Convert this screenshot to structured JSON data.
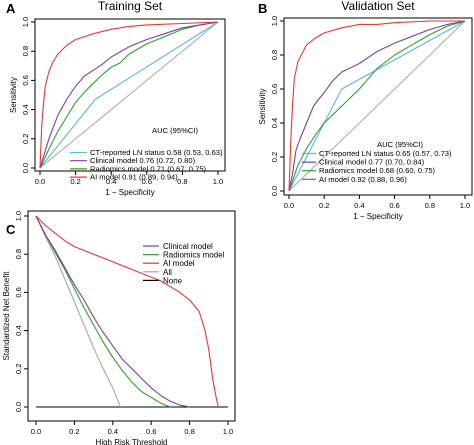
{
  "chart_data": [
    {
      "panel_label": "A",
      "type": "line",
      "title": "Training Set",
      "xlabel": "1 − Specificity",
      "ylabel": "Sensitivity",
      "xlim": [
        0,
        1.0
      ],
      "ylim": [
        0,
        1.0
      ],
      "xticks": [
        "0.0",
        "0.2",
        "0.4",
        "0.6",
        "0.8",
        "1.0"
      ],
      "yticks": [
        "0.0",
        "0.2",
        "0.4",
        "0.6",
        "0.8",
        "1.0"
      ],
      "grid": false,
      "legend_title": "AUC (95%CI)",
      "legend_position": "bottom-right",
      "diagonal_reference": true,
      "series": [
        {
          "name": "CT-reported LN status",
          "label": "CT-reported LN status 0.58 (0.53, 0.63)",
          "color": "#5ab4e5",
          "points": [
            [
              0,
              0
            ],
            [
              0.31,
              0.47
            ],
            [
              1,
              1
            ]
          ]
        },
        {
          "name": "Clinical model",
          "label": "Clinical model 0.76 (0.72, 0.80)",
          "color": "#7b3fa3",
          "points": [
            [
              0,
              0
            ],
            [
              0.02,
              0.08
            ],
            [
              0.05,
              0.2
            ],
            [
              0.1,
              0.36
            ],
            [
              0.15,
              0.47
            ],
            [
              0.2,
              0.56
            ],
            [
              0.25,
              0.63
            ],
            [
              0.3,
              0.67
            ],
            [
              0.35,
              0.71
            ],
            [
              0.4,
              0.76
            ],
            [
              0.5,
              0.83
            ],
            [
              0.6,
              0.88
            ],
            [
              0.7,
              0.92
            ],
            [
              0.8,
              0.96
            ],
            [
              0.9,
              0.98
            ],
            [
              1,
              1
            ]
          ]
        },
        {
          "name": "Radiomics model",
          "label": "Radiomics model 0.71 (0.67, 0.75)",
          "color": "#2ca02c",
          "points": [
            [
              0,
              0
            ],
            [
              0.02,
              0.05
            ],
            [
              0.05,
              0.13
            ],
            [
              0.1,
              0.25
            ],
            [
              0.15,
              0.35
            ],
            [
              0.2,
              0.45
            ],
            [
              0.25,
              0.52
            ],
            [
              0.3,
              0.58
            ],
            [
              0.35,
              0.64
            ],
            [
              0.4,
              0.69
            ],
            [
              0.45,
              0.72
            ],
            [
              0.5,
              0.78
            ],
            [
              0.6,
              0.85
            ],
            [
              0.7,
              0.9
            ],
            [
              0.8,
              0.95
            ],
            [
              0.9,
              0.98
            ],
            [
              1,
              1
            ]
          ]
        },
        {
          "name": "AI model",
          "label": "AI model 0.91 (0.89, 0.94)",
          "color": "#e8372f",
          "points": [
            [
              0,
              0
            ],
            [
              0.01,
              0.3
            ],
            [
              0.02,
              0.45
            ],
            [
              0.03,
              0.56
            ],
            [
              0.05,
              0.66
            ],
            [
              0.07,
              0.72
            ],
            [
              0.1,
              0.78
            ],
            [
              0.15,
              0.84
            ],
            [
              0.2,
              0.88
            ],
            [
              0.25,
              0.9
            ],
            [
              0.3,
              0.92
            ],
            [
              0.4,
              0.95
            ],
            [
              0.5,
              0.97
            ],
            [
              0.6,
              0.98
            ],
            [
              0.8,
              0.99
            ],
            [
              1,
              1
            ]
          ]
        }
      ]
    },
    {
      "panel_label": "B",
      "type": "line",
      "title": "Validation Set",
      "xlabel": "1 − Specificity",
      "ylabel": "Sensitivity",
      "xlim": [
        0,
        1.0
      ],
      "ylim": [
        0,
        1.0
      ],
      "xticks": [
        "0.0",
        "0.2",
        "0.4",
        "0.6",
        "0.8",
        "1.0"
      ],
      "yticks": [
        "0.0",
        "0.2",
        "0.4",
        "0.6",
        "0.8",
        "1.0"
      ],
      "grid": false,
      "legend_title": "AUC (95%CI)",
      "legend_position": "bottom-right",
      "diagonal_reference": true,
      "series": [
        {
          "name": "CT-reported LN status",
          "label": "CT-reported LN status 0.65 (0.57, 0.73)",
          "color": "#5ab4e5",
          "points": [
            [
              0,
              0
            ],
            [
              0.3,
              0.6
            ],
            [
              1,
              1
            ]
          ]
        },
        {
          "name": "Clinical model",
          "label": "Clinical model 0.77 (0.70, 0.84)",
          "color": "#7b3fa3",
          "points": [
            [
              0,
              0
            ],
            [
              0.02,
              0.1
            ],
            [
              0.04,
              0.24
            ],
            [
              0.06,
              0.3
            ],
            [
              0.1,
              0.4
            ],
            [
              0.14,
              0.5
            ],
            [
              0.2,
              0.58
            ],
            [
              0.25,
              0.65
            ],
            [
              0.3,
              0.7
            ],
            [
              0.4,
              0.75
            ],
            [
              0.5,
              0.82
            ],
            [
              0.6,
              0.87
            ],
            [
              0.7,
              0.91
            ],
            [
              0.8,
              0.95
            ],
            [
              0.9,
              0.98
            ],
            [
              1,
              1
            ]
          ]
        },
        {
          "name": "Radiomics model",
          "label": "Radiomics model 0.68 (0.60, 0.75)",
          "color": "#2ca02c",
          "points": [
            [
              0,
              0
            ],
            [
              0.02,
              0.06
            ],
            [
              0.05,
              0.15
            ],
            [
              0.1,
              0.25
            ],
            [
              0.15,
              0.33
            ],
            [
              0.2,
              0.4
            ],
            [
              0.25,
              0.45
            ],
            [
              0.3,
              0.5
            ],
            [
              0.35,
              0.55
            ],
            [
              0.4,
              0.6
            ],
            [
              0.45,
              0.66
            ],
            [
              0.5,
              0.72
            ],
            [
              0.6,
              0.8
            ],
            [
              0.7,
              0.86
            ],
            [
              0.8,
              0.92
            ],
            [
              0.9,
              0.97
            ],
            [
              1,
              1
            ]
          ]
        },
        {
          "name": "AI model",
          "label": "AI model 0.92 (0.88, 0.96)",
          "color": "#e8372f",
          "points": [
            [
              0,
              0
            ],
            [
              0.01,
              0.3
            ],
            [
              0.02,
              0.5
            ],
            [
              0.03,
              0.66
            ],
            [
              0.05,
              0.76
            ],
            [
              0.08,
              0.82
            ],
            [
              0.1,
              0.86
            ],
            [
              0.15,
              0.9
            ],
            [
              0.2,
              0.93
            ],
            [
              0.3,
              0.96
            ],
            [
              0.4,
              0.98
            ],
            [
              0.5,
              0.98
            ],
            [
              0.6,
              0.99
            ],
            [
              0.8,
              1.0
            ],
            [
              1,
              1
            ]
          ]
        }
      ]
    },
    {
      "panel_label": "C",
      "type": "line",
      "title": "",
      "xlabel": "High Risk Threshold",
      "ylabel": "Standardized Net Benefit",
      "xlim": [
        0,
        1.0
      ],
      "ylim": [
        0,
        1.0
      ],
      "xticks": [
        "0.0",
        "0.2",
        "0.4",
        "0.6",
        "0.8",
        "1.0"
      ],
      "yticks": [
        "0.0",
        "0.2",
        "0.4",
        "0.6",
        "0.8",
        "1.0"
      ],
      "grid": false,
      "legend_position": "top-right",
      "series": [
        {
          "name": "Clinical model",
          "color": "#7b3fa3",
          "points": [
            [
              0,
              1.0
            ],
            [
              0.05,
              0.9
            ],
            [
              0.1,
              0.82
            ],
            [
              0.15,
              0.73
            ],
            [
              0.2,
              0.64
            ],
            [
              0.25,
              0.56
            ],
            [
              0.3,
              0.47
            ],
            [
              0.35,
              0.39
            ],
            [
              0.4,
              0.32
            ],
            [
              0.45,
              0.25
            ],
            [
              0.5,
              0.2
            ],
            [
              0.55,
              0.15
            ],
            [
              0.6,
              0.1
            ],
            [
              0.65,
              0.06
            ],
            [
              0.7,
              0.03
            ],
            [
              0.75,
              0.01
            ],
            [
              0.8,
              0.0
            ]
          ]
        },
        {
          "name": "Radiomics model",
          "color": "#2ca02c",
          "points": [
            [
              0,
              1.0
            ],
            [
              0.05,
              0.9
            ],
            [
              0.1,
              0.81
            ],
            [
              0.15,
              0.72
            ],
            [
              0.2,
              0.62
            ],
            [
              0.25,
              0.52
            ],
            [
              0.3,
              0.43
            ],
            [
              0.35,
              0.34
            ],
            [
              0.4,
              0.26
            ],
            [
              0.45,
              0.19
            ],
            [
              0.5,
              0.13
            ],
            [
              0.55,
              0.08
            ],
            [
              0.6,
              0.05
            ],
            [
              0.65,
              0.02
            ],
            [
              0.7,
              0.0
            ]
          ]
        },
        {
          "name": "AI model",
          "color": "#e8372f",
          "points": [
            [
              0,
              1.0
            ],
            [
              0.05,
              0.95
            ],
            [
              0.1,
              0.91
            ],
            [
              0.15,
              0.87
            ],
            [
              0.2,
              0.84
            ],
            [
              0.3,
              0.8
            ],
            [
              0.4,
              0.76
            ],
            [
              0.5,
              0.72
            ],
            [
              0.6,
              0.68
            ],
            [
              0.65,
              0.66
            ],
            [
              0.7,
              0.63
            ],
            [
              0.75,
              0.6
            ],
            [
              0.8,
              0.56
            ],
            [
              0.85,
              0.5
            ],
            [
              0.88,
              0.4
            ],
            [
              0.9,
              0.3
            ],
            [
              0.92,
              0.15
            ],
            [
              0.94,
              0.04
            ],
            [
              0.95,
              0.0
            ]
          ]
        },
        {
          "name": "All",
          "color": "#a6a6a6",
          "points": [
            [
              0,
              1.0
            ],
            [
              0.05,
              0.89
            ],
            [
              0.1,
              0.79
            ],
            [
              0.15,
              0.67
            ],
            [
              0.2,
              0.55
            ],
            [
              0.25,
              0.43
            ],
            [
              0.3,
              0.31
            ],
            [
              0.35,
              0.2
            ],
            [
              0.4,
              0.1
            ],
            [
              0.44,
              0.0
            ]
          ]
        },
        {
          "name": "None",
          "color": "#000000",
          "points": [
            [
              0,
              0
            ],
            [
              1,
              0
            ]
          ]
        }
      ]
    }
  ]
}
